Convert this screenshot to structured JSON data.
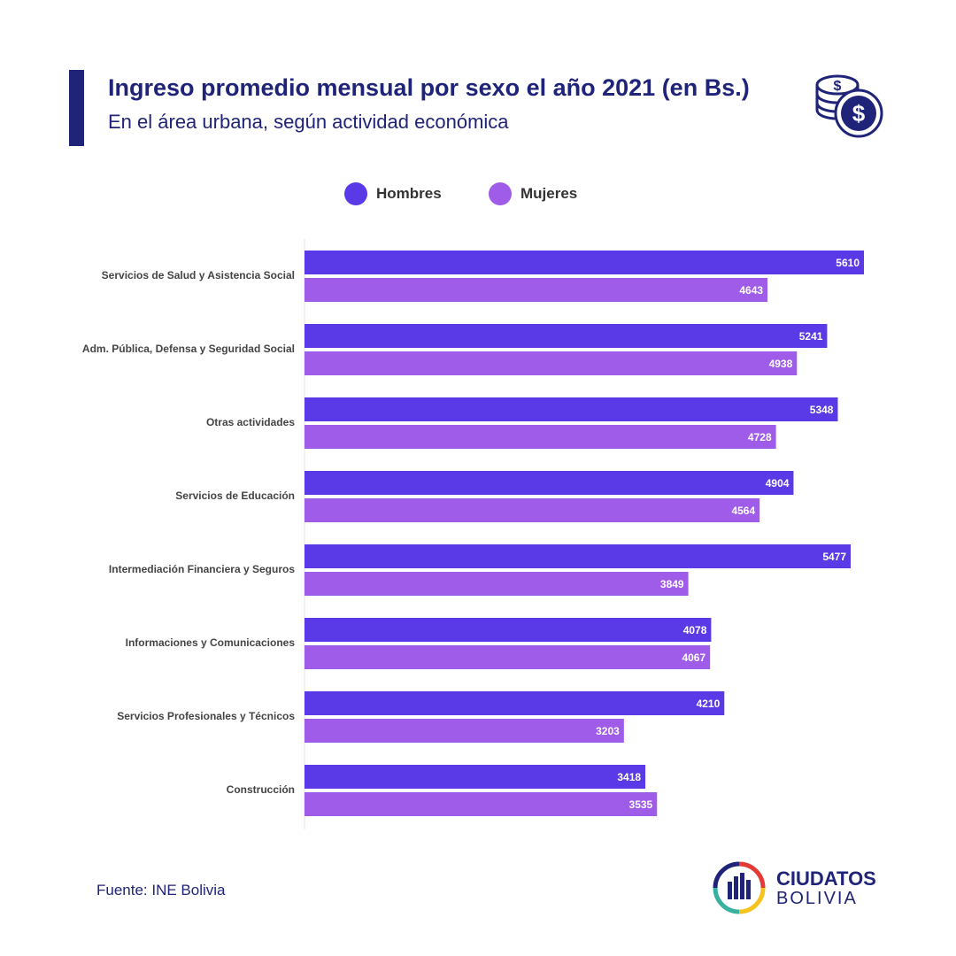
{
  "header": {
    "title": "Ingreso promedio mensual por sexo el año 2021 (en Bs.)",
    "subtitle": "En el área urbana, según actividad económica"
  },
  "footer": {
    "source": "Fuente: INE Bolivia",
    "brand_line1": "CIUDATOS",
    "brand_line2": "BOLIVIA"
  },
  "colors": {
    "accent": "#1f2479",
    "hombres": "#5a3ae6",
    "mujeres": "#9f5ce9"
  },
  "chart_data": {
    "type": "bar",
    "orientation": "horizontal",
    "title": "Ingreso promedio mensual por sexo el año 2021 (en Bs.)",
    "subtitle": "En el área urbana, según actividad económica",
    "legend_position": "top-center",
    "grid": false,
    "xlim": [
      0,
      5610
    ],
    "categories": [
      "Servicios de Salud y Asistencia Social",
      "Adm. Pública, Defensa y Seguridad Social",
      "Otras actividades",
      "Servicios de Educación",
      "Intermediación Financiera y Seguros",
      "Informaciones y Comunicaciones",
      "Servicios Profesionales y Técnicos",
      "Construcción"
    ],
    "series": [
      {
        "name": "Hombres",
        "color": "#5a3ae6",
        "values": [
          5610,
          5241,
          5348,
          4904,
          5477,
          4078,
          4210,
          3418
        ]
      },
      {
        "name": "Mujeres",
        "color": "#9f5ce9",
        "values": [
          4643,
          4938,
          4728,
          4564,
          3849,
          4067,
          3203,
          3535
        ]
      }
    ]
  }
}
